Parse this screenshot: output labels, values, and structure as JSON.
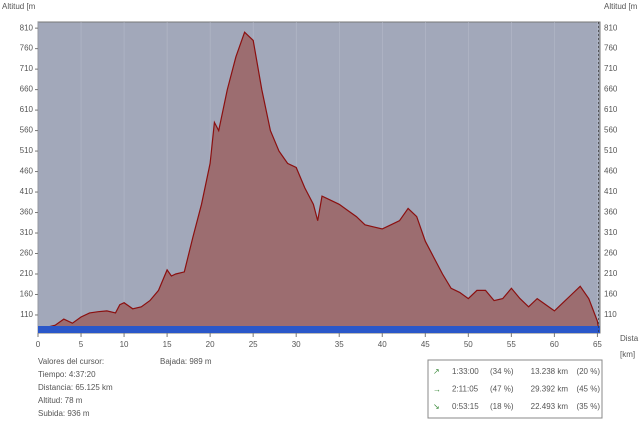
{
  "chart_data": {
    "type": "area",
    "y_label_left": "Altitud [m",
    "y_label_right": "Altitud [m",
    "x_label": "Dista",
    "x_unit": "[km]",
    "x": [
      0,
      1,
      2,
      3,
      4,
      5,
      6,
      7,
      8,
      9,
      9.5,
      10,
      11,
      12,
      13,
      14,
      15,
      15.5,
      16,
      17,
      18,
      19,
      20,
      20.5,
      21,
      22,
      23,
      24,
      25,
      26,
      27,
      28,
      29,
      30,
      31,
      32,
      32.5,
      33,
      34,
      35,
      36,
      37,
      38,
      39,
      40,
      41,
      42,
      43,
      44,
      45,
      46,
      47,
      48,
      49,
      50,
      51,
      52,
      53,
      54,
      55,
      56,
      57,
      58,
      59,
      60,
      61,
      62,
      63,
      64,
      65,
      65.125
    ],
    "values": [
      78,
      80,
      85,
      100,
      90,
      105,
      115,
      118,
      120,
      115,
      135,
      140,
      125,
      130,
      145,
      170,
      220,
      205,
      210,
      215,
      300,
      380,
      480,
      580,
      560,
      660,
      740,
      800,
      780,
      660,
      560,
      510,
      480,
      470,
      420,
      380,
      340,
      400,
      390,
      380,
      365,
      350,
      330,
      325,
      320,
      330,
      340,
      370,
      350,
      290,
      250,
      210,
      175,
      165,
      150,
      170,
      170,
      145,
      150,
      175,
      150,
      130,
      150,
      135,
      120,
      140,
      160,
      180,
      150,
      95,
      78
    ],
    "line_color": "#8b1010",
    "fill_color": "#9c6d70",
    "plot_color": "#a2a8ba",
    "xlim": [
      0,
      65.3
    ],
    "ylim": [
      66,
      825
    ],
    "xticks": [
      0,
      5,
      10,
      15,
      20,
      25,
      30,
      35,
      40,
      45,
      50,
      55,
      60,
      65
    ],
    "yticks": [
      110,
      160,
      210,
      260,
      310,
      360,
      410,
      460,
      510,
      560,
      610,
      660,
      710,
      760,
      810
    ],
    "grid": true
  },
  "cursor": {
    "heading": "Valores del cursor:",
    "lines": [
      "Tiempo: 4:37:20",
      "Distancia: 65.125 km",
      "Altitud: 78 m",
      "Subida: 936 m"
    ],
    "descent": "Bajada: 989 m"
  },
  "stats": [
    [
      "1:33:00",
      "(34 %)",
      "13.238 km",
      "(20 %)"
    ],
    [
      "2:11:05",
      "(47 %)",
      "29.392 km",
      "(45 %)"
    ],
    [
      "0:53:15",
      "(18 %)",
      "22.493 km",
      "(35 %)"
    ]
  ]
}
